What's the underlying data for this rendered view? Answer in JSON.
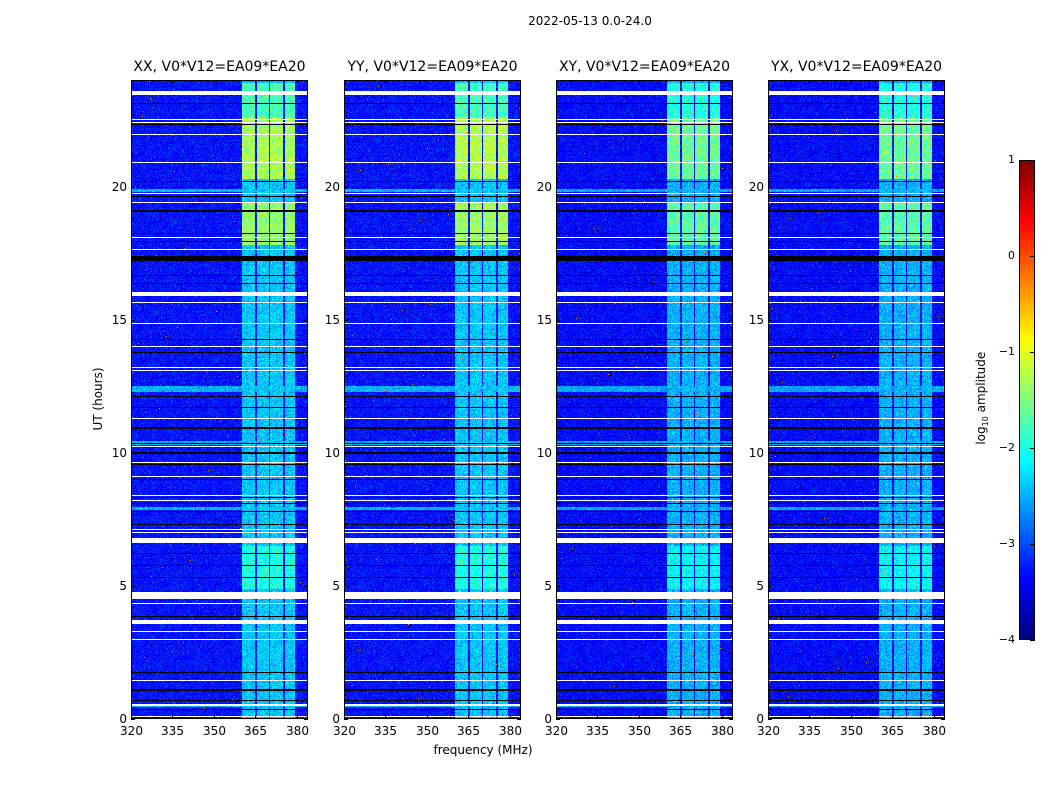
{
  "chart_data": {
    "type": "heatmap",
    "title": "2022-05-13 0.0-24.0",
    "xlabel": "frequency (MHz)",
    "ylabel": "UT (hours)",
    "xlim": [
      320,
      384
    ],
    "ylim": [
      0,
      24
    ],
    "xticks": [
      "320",
      "335",
      "350",
      "365",
      "380"
    ],
    "xtick_values": [
      320,
      335,
      350,
      365,
      380
    ],
    "yticks": [
      "0",
      "5",
      "10",
      "15",
      "20"
    ],
    "ytick_values": [
      0,
      5,
      10,
      15,
      20
    ],
    "panels": [
      {
        "title": "XX, V0*V12=EA09*EA20",
        "background_log_amp": -3.3,
        "rfi_band_log_amp": -2.4,
        "bright_scale": 1.0
      },
      {
        "title": "YY, V0*V12=EA09*EA20",
        "background_log_amp": -3.3,
        "rfi_band_log_amp": -2.4,
        "bright_scale": 1.05
      },
      {
        "title": "XY, V0*V12=EA09*EA20",
        "background_log_amp": -3.35,
        "rfi_band_log_amp": -2.5,
        "bright_scale": 0.75
      },
      {
        "title": "YX, V0*V12=EA09*EA20",
        "background_log_amp": -3.35,
        "rfi_band_log_amp": -2.5,
        "bright_scale": 0.75
      }
    ],
    "rfi_band_mhz": [
      360.3,
      379.3
    ],
    "rfi_band_gaps_mhz": [
      [
        364.8,
        365.4
      ],
      [
        369.8,
        370.4
      ],
      [
        375.0,
        375.6
      ]
    ],
    "bright_intervals_hours": [
      {
        "from": 20.3,
        "to": 22.6,
        "log_amp": -1.3
      },
      {
        "from": 17.8,
        "to": 19.4,
        "log_amp": -1.4
      },
      {
        "from": 22.6,
        "to": 23.9,
        "log_amp": -1.8
      },
      {
        "from": 4.9,
        "to": 6.5,
        "log_amp": -2.0
      }
    ],
    "elevated_rows_hours": [
      [
        19.8,
        19.9
      ],
      [
        12.3,
        12.5
      ],
      [
        10.3,
        10.45
      ],
      [
        7.85,
        7.95
      ],
      [
        1.05,
        1.1
      ],
      [
        0.45,
        0.5
      ]
    ],
    "flagged_white_hours": [
      [
        23.43,
        23.58
      ],
      [
        22.48,
        22.52
      ],
      [
        22.38,
        22.42
      ],
      [
        21.93,
        21.97
      ],
      [
        20.88,
        20.92
      ],
      [
        19.73,
        19.77
      ],
      [
        19.38,
        19.42
      ],
      [
        18.08,
        18.12
      ],
      [
        17.63,
        17.67
      ],
      [
        15.88,
        16.02
      ],
      [
        15.63,
        15.67
      ],
      [
        14.85,
        14.89
      ],
      [
        13.98,
        14.02
      ],
      [
        13.18,
        13.22
      ],
      [
        13.08,
        13.12
      ],
      [
        11.25,
        11.29
      ],
      [
        10.23,
        10.27
      ],
      [
        9.63,
        9.67
      ],
      [
        9.08,
        9.12
      ],
      [
        8.38,
        8.42
      ],
      [
        8.2,
        8.24
      ],
      [
        7.08,
        7.12
      ],
      [
        6.98,
        7.02
      ],
      [
        6.6,
        6.8
      ],
      [
        4.5,
        4.77
      ],
      [
        4.33,
        4.37
      ],
      [
        3.55,
        3.7
      ],
      [
        3.28,
        3.32
      ],
      [
        2.95,
        2.99
      ],
      [
        1.44,
        1.48
      ],
      [
        0.5,
        0.55
      ],
      [
        0.06,
        0.1
      ]
    ],
    "flagged_black_hours": [
      [
        23.11,
        23.15
      ],
      [
        22.32,
        22.36
      ],
      [
        20.18,
        20.22
      ],
      [
        19.62,
        19.66
      ],
      [
        19.06,
        19.1
      ],
      [
        18.23,
        18.27
      ],
      [
        17.93,
        17.97
      ],
      [
        17.2,
        17.4
      ],
      [
        16.65,
        16.69
      ],
      [
        16.35,
        16.39
      ],
      [
        14.25,
        14.29
      ],
      [
        13.76,
        13.8
      ],
      [
        12.08,
        12.12
      ],
      [
        11.68,
        11.72
      ],
      [
        10.91,
        10.95
      ],
      [
        10.34,
        10.38
      ],
      [
        9.95,
        10.03
      ],
      [
        9.53,
        9.57
      ],
      [
        8.98,
        9.02
      ],
      [
        8.31,
        8.35
      ],
      [
        8.08,
        8.12
      ],
      [
        7.78,
        7.82
      ],
      [
        7.3,
        7.34
      ],
      [
        6.21,
        6.25
      ],
      [
        5.73,
        5.77
      ],
      [
        5.28,
        5.32
      ],
      [
        3.84,
        3.88
      ],
      [
        1.74,
        1.78
      ],
      [
        1.07,
        1.11
      ],
      [
        0.69,
        0.73
      ],
      [
        0.32,
        0.36
      ]
    ],
    "colorbar": {
      "label": "log10 amplitude",
      "label_main": "log",
      "label_sub": "10",
      "label_rest": " amplitude",
      "colormap": "jet",
      "range": [
        -4,
        1
      ],
      "ticks": [
        "1",
        "0",
        "−1",
        "−2",
        "−3",
        "−4"
      ],
      "tick_values": [
        1,
        0,
        -1,
        -2,
        -3,
        -4
      ]
    }
  }
}
